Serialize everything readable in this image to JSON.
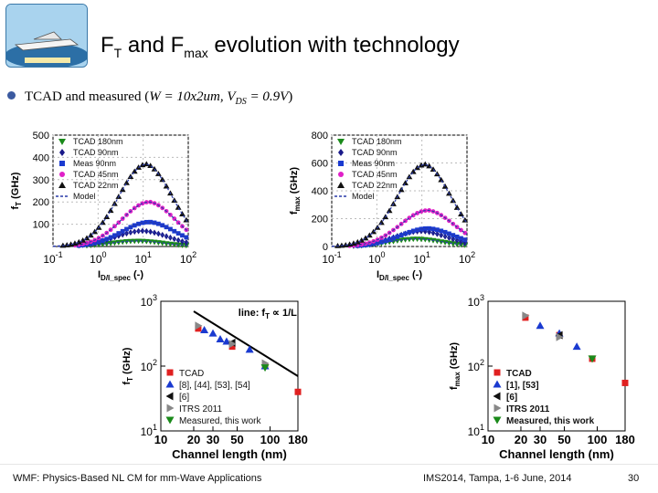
{
  "header": {
    "title_pre": "F",
    "title_sub1": "T",
    "title_mid": " and F",
    "title_sub2": "max",
    "title_post": " evolution with technology"
  },
  "bullet": {
    "text": "TCAD and measured (",
    "equation": "W = 10x2um, V",
    "eq_sub": "DS",
    "equation_end": " = 0.9V",
    "close": ")"
  },
  "footer": {
    "left": "WMF: Physics-Based NL CM for mm-Wave Applications",
    "center": "IMS2014, Tampa, 1-6 June, 2014",
    "page": "30"
  },
  "chart_data": [
    {
      "type": "scatter",
      "ylabel": "f_T (GHz)",
      "xlabel": "I_D/I_spec (-)",
      "xscale": "log",
      "xlim": [
        0.1,
        100
      ],
      "ylim": [
        0,
        500
      ],
      "yticks": [
        100,
        200,
        300,
        400,
        500
      ],
      "xticks": [
        "10^-1",
        "10^0",
        "10^1",
        "10^2"
      ],
      "legend": [
        "TCAD 180nm",
        "TCAD 90nm",
        "Meas 90nm",
        "TCAD 45nm",
        "TCAD 22nm",
        "Model"
      ],
      "series": [
        {
          "name": "TCAD 180nm",
          "color": "#1a8a1a",
          "marker": "tri-down",
          "peak": 25,
          "peak_x": 8
        },
        {
          "name": "TCAD 90nm",
          "color": "#1a1a8a",
          "marker": "diamond",
          "peak": 70,
          "peak_x": 10
        },
        {
          "name": "Meas 90nm",
          "color": "#1a3ad0",
          "marker": "square",
          "peak": 110,
          "peak_x": 14
        },
        {
          "name": "TCAD 45nm",
          "color": "#e020c8",
          "marker": "circle",
          "peak": 200,
          "peak_x": 14
        },
        {
          "name": "TCAD 22nm",
          "color": "#111111",
          "marker": "tri-up",
          "peak": 370,
          "peak_x": 12
        }
      ]
    },
    {
      "type": "scatter",
      "ylabel": "f_max (GHz)",
      "xlabel": "I_D/I_spec (-)",
      "xscale": "log",
      "xlim": [
        0.1,
        100
      ],
      "ylim": [
        0,
        800
      ],
      "yticks": [
        0,
        200,
        400,
        600,
        800
      ],
      "xticks": [
        "10^-1",
        "10^0",
        "10^1",
        "10^2"
      ],
      "legend": [
        "TCAD 180nm",
        "TCAD 90nm",
        "Meas 90nm",
        "TCAD 45nm",
        "TCAD 22nm",
        "Model"
      ],
      "series": [
        {
          "name": "TCAD 180nm",
          "color": "#1a8a1a",
          "marker": "tri-down",
          "peak": 55,
          "peak_x": 8
        },
        {
          "name": "TCAD 90nm",
          "color": "#1a1a8a",
          "marker": "diamond",
          "peak": 110,
          "peak_x": 10
        },
        {
          "name": "Meas 90nm",
          "color": "#1a3ad0",
          "marker": "square",
          "peak": 130,
          "peak_x": 14
        },
        {
          "name": "TCAD 45nm",
          "color": "#e020c8",
          "marker": "circle",
          "peak": 260,
          "peak_x": 14
        },
        {
          "name": "TCAD 22nm",
          "color": "#111111",
          "marker": "tri-up",
          "peak": 590,
          "peak_x": 12
        }
      ]
    },
    {
      "type": "scatter",
      "ylabel": "f_T (GHz)",
      "xlabel": "Channel length (nm)",
      "xscale": "log",
      "yscale": "log",
      "xlim": [
        10,
        180
      ],
      "ylim": [
        10,
        1000
      ],
      "xticks": [
        10,
        20,
        30,
        50,
        100,
        180
      ],
      "yticks": [
        "10^1",
        "10^2",
        "10^3"
      ],
      "annotation": "line: f_T ∝ 1/L",
      "legend": [
        "TCAD",
        "[8], [44], [53], [54]",
        "[6]",
        "ITRS 2011",
        "Measured, this work"
      ],
      "series": [
        {
          "name": "TCAD",
          "color": "#e02020",
          "marker": "square",
          "points": [
            [
              22,
              380
            ],
            [
              45,
              200
            ],
            [
              90,
              100
            ],
            [
              180,
              40
            ]
          ]
        },
        {
          "name": "[8], [44], [53], [54]",
          "color": "#1a3ad0",
          "marker": "tri-up",
          "points": [
            [
              25,
              360
            ],
            [
              30,
              320
            ],
            [
              35,
              260
            ],
            [
              40,
              240
            ],
            [
              65,
              180
            ],
            [
              90,
              100
            ]
          ]
        },
        {
          "name": "[6]",
          "color": "#111111",
          "marker": "tri-left",
          "points": [
            [
              45,
              230
            ]
          ]
        },
        {
          "name": "ITRS 2011",
          "color": "#888888",
          "marker": "tri-right",
          "points": [
            [
              22,
              420
            ],
            [
              45,
              220
            ],
            [
              90,
              110
            ]
          ]
        },
        {
          "name": "Measured, this work",
          "color": "#1a8a1a",
          "marker": "tri-down",
          "points": [
            [
              90,
              95
            ]
          ]
        }
      ]
    },
    {
      "type": "scatter",
      "ylabel": "f_max (GHz)",
      "xlabel": "Channel length (nm)",
      "xscale": "log",
      "yscale": "log",
      "xlim": [
        10,
        180
      ],
      "ylim": [
        10,
        1000
      ],
      "xticks": [
        10,
        20,
        30,
        50,
        100,
        180
      ],
      "yticks": [
        "10^1",
        "10^2",
        "10^3"
      ],
      "legend": [
        "TCAD",
        "[1], [53]",
        "[6]",
        "ITRS 2011",
        "Measured, this work"
      ],
      "series": [
        {
          "name": "TCAD",
          "color": "#e02020",
          "marker": "square",
          "points": [
            [
              22,
              560
            ],
            [
              45,
              300
            ],
            [
              90,
              130
            ],
            [
              180,
              55
            ]
          ]
        },
        {
          "name": "[1], [53]",
          "color": "#1a3ad0",
          "marker": "tri-up",
          "points": [
            [
              30,
              420
            ],
            [
              45,
              320
            ],
            [
              65,
              200
            ]
          ]
        },
        {
          "name": "[6]",
          "color": "#111111",
          "marker": "tri-left",
          "points": [
            [
              45,
              300
            ]
          ]
        },
        {
          "name": "ITRS 2011",
          "color": "#888888",
          "marker": "tri-right",
          "points": [
            [
              22,
              600
            ],
            [
              45,
              280
            ]
          ]
        },
        {
          "name": "Measured, this work",
          "color": "#1a8a1a",
          "marker": "tri-down",
          "points": [
            [
              90,
              130
            ]
          ]
        }
      ]
    }
  ]
}
